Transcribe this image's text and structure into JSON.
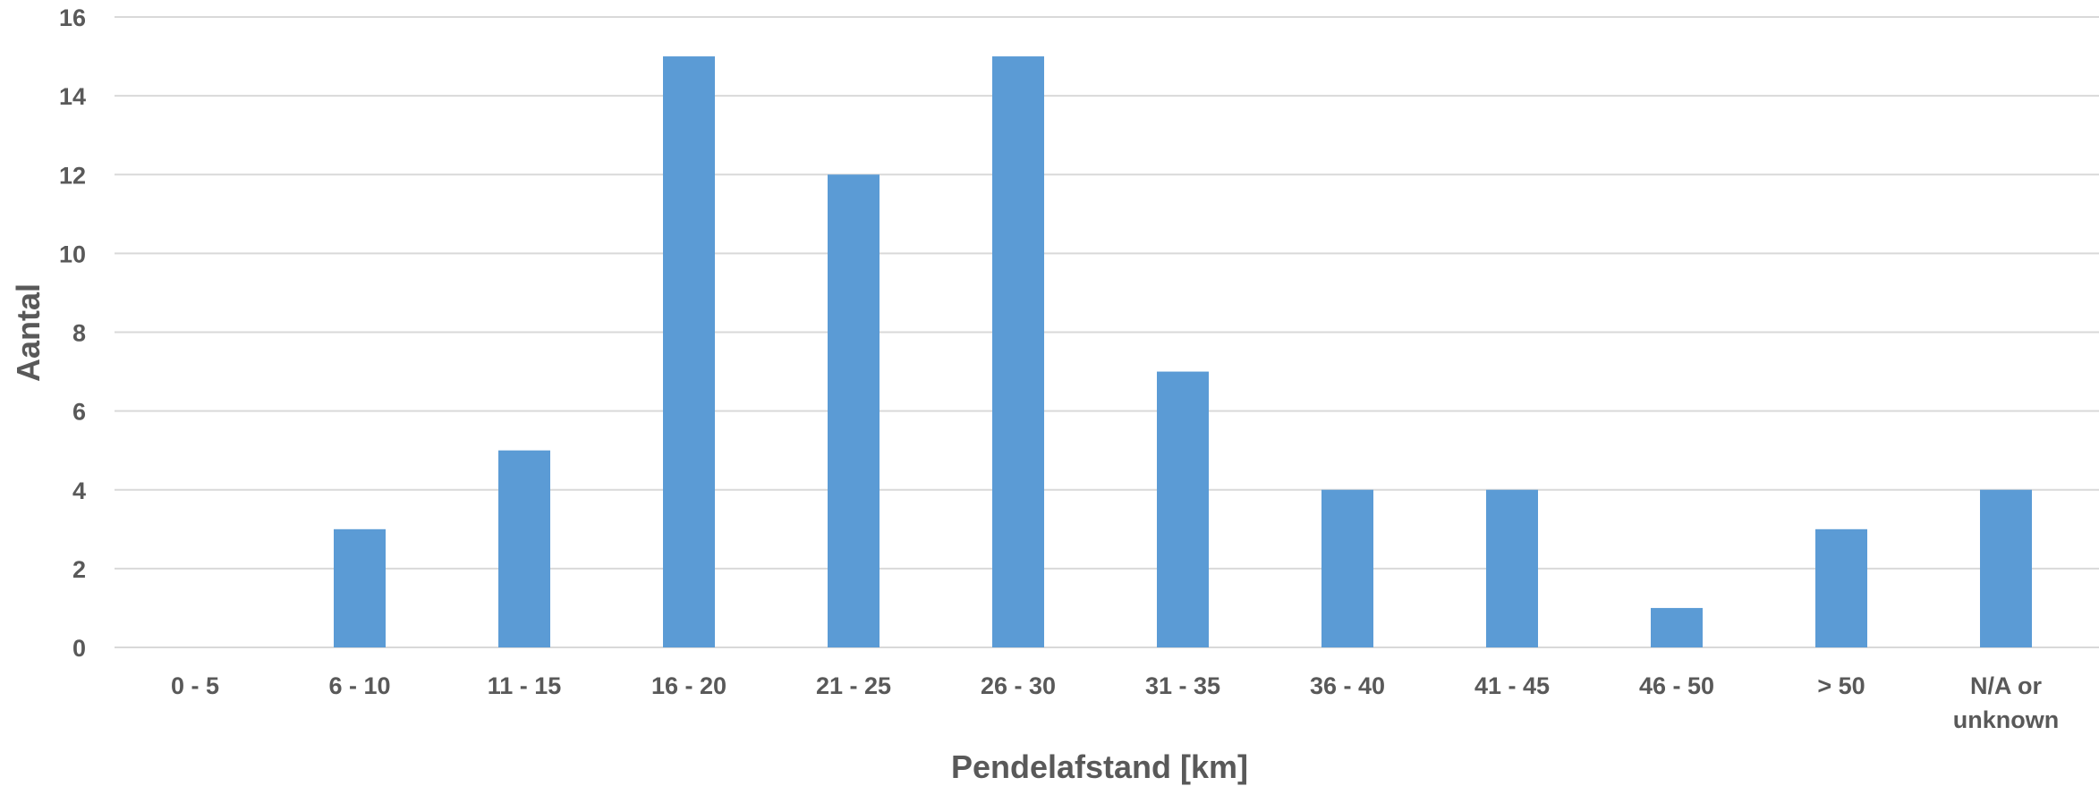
{
  "chart_data": {
    "type": "bar",
    "title": "",
    "xlabel": "Pendelafstand [km]",
    "ylabel": "Aantal",
    "categories": [
      "0 - 5",
      "6 - 10",
      "11 - 15",
      "16 - 20",
      "21 - 25",
      "26 - 30",
      "31 - 35",
      "36 - 40",
      "41 - 45",
      "46 - 50",
      "> 50",
      "N/A or unknown"
    ],
    "series": [
      {
        "values": [
          0,
          3,
          5,
          15,
          12,
          15,
          7,
          4,
          4,
          1,
          3,
          4
        ]
      }
    ],
    "ylim": [
      0,
      16
    ],
    "yticks": [
      0,
      2,
      4,
      6,
      8,
      10,
      12,
      14,
      16
    ],
    "grid": true,
    "legend": "none",
    "colors": {
      "bar": "#5b9bd5",
      "grid": "#d9d9d9",
      "text": "#595959"
    }
  }
}
